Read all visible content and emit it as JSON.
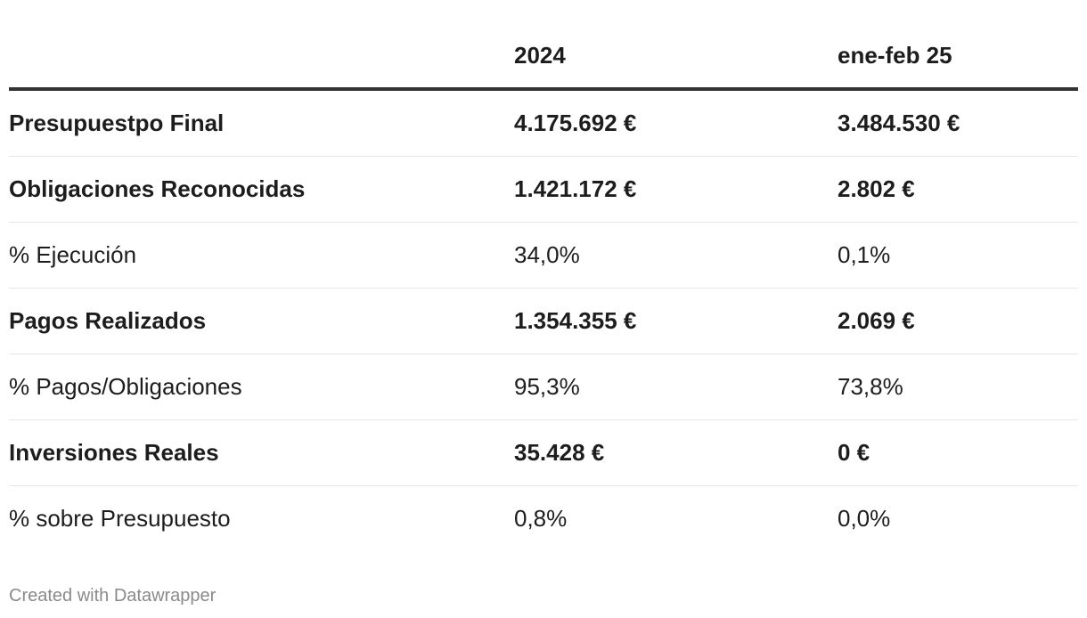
{
  "table": {
    "columns": [
      "2024",
      "ene-feb 25"
    ],
    "rows": [
      [
        "Presupuestpo Final",
        "4.175.692 €",
        "3.484.530 €"
      ],
      [
        "Obligaciones Reconocidas",
        "1.421.172 €",
        "2.802 €"
      ],
      [
        "% Ejecución",
        "34,0%",
        "0,1%"
      ],
      [
        "Pagos Realizados",
        "1.354.355 €",
        "2.069 €"
      ],
      [
        "% Pagos/Obligaciones",
        "95,3%",
        "73,8%"
      ],
      [
        "Inversiones Reales",
        "35.428 €",
        "0 €"
      ],
      [
        "% sobre Presupuesto",
        "0,8%",
        "0,0%"
      ]
    ]
  },
  "footer": "Created with Datawrapper"
}
